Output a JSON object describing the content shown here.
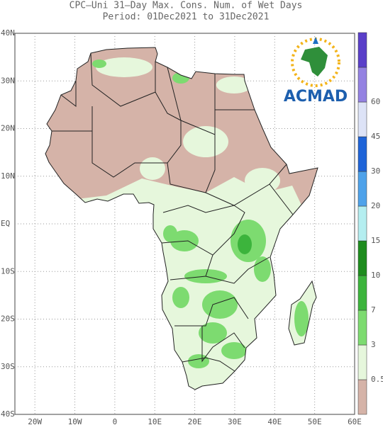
{
  "header": {
    "title": "CPC–Uni 31–Day Max. Cons. Num. of Wet Days",
    "period": "Period: 01Dec2021 to 31Dec2021"
  },
  "map": {
    "lat_labels": [
      "40N",
      "30N",
      "20N",
      "10N",
      "EQ",
      "10S",
      "20S",
      "30S",
      "40S"
    ],
    "lon_labels": [
      "20W",
      "10W",
      "0",
      "10E",
      "20E",
      "30E",
      "40E",
      "50E",
      "60E"
    ]
  },
  "legend": {
    "labels": [
      "0.5",
      "3",
      "7",
      "10",
      "15",
      "20",
      "30",
      "45",
      "60"
    ],
    "colors": [
      "#d5b3a8",
      "#e6f7dc",
      "#7ddb70",
      "#3cb43c",
      "#1e8c1e",
      "#b4eef0",
      "#4ea2ea",
      "#1f64d8",
      "#dde3f7",
      "#9482e2",
      "#5a3fc9"
    ]
  },
  "logo": {
    "text": "ACMAD"
  }
}
